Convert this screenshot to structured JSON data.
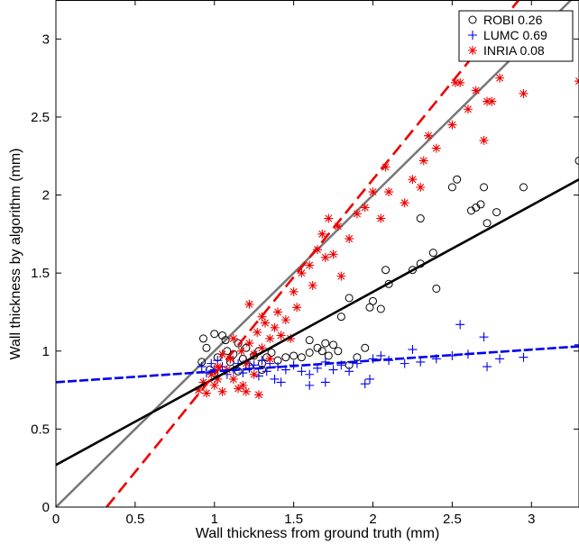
{
  "chart_data": {
    "type": "scatter",
    "title": "",
    "xlabel": "Wall thickness from ground truth (mm)",
    "ylabel": "Wall thickness by algorithm (mm)",
    "xlim": [
      0,
      3.3
    ],
    "ylim": [
      0,
      3.25
    ],
    "xticks": [
      0,
      0.5,
      1,
      1.5,
      2,
      2.5,
      3
    ],
    "yticks": [
      0,
      0.5,
      1,
      1.5,
      2,
      2.5,
      3
    ],
    "xtick_labels": [
      "0",
      "0.5",
      "1",
      "1.5",
      "2",
      "2.5",
      "3"
    ],
    "ytick_labels": [
      "0",
      "0.5",
      "1",
      "1.5",
      "2",
      "2.5",
      "3"
    ],
    "grid": false,
    "legend_position": "top-right",
    "legend": [
      {
        "label": "ROBI 0.26",
        "marker": "circle",
        "color": "#000000"
      },
      {
        "label": "LUMC 0.69",
        "marker": "plus",
        "color": "#0000ee"
      },
      {
        "label": "INRIA 0.08",
        "marker": "asterisk",
        "color": "#ee0000"
      }
    ],
    "reference_line": {
      "name": "identity",
      "color": "#777777",
      "x": [
        0,
        3.3
      ],
      "y": [
        0,
        3.3
      ]
    },
    "fit_lines": [
      {
        "series": "ROBI 0.26",
        "color": "#000000",
        "style": "solid",
        "x": [
          0,
          3.3
        ],
        "y": [
          0.27,
          2.1
        ]
      },
      {
        "series": "LUMC 0.69",
        "color": "#0000ee",
        "style": "dashed",
        "x": [
          0,
          3.3
        ],
        "y": [
          0.8,
          1.03
        ]
      },
      {
        "series": "INRIA 0.08",
        "color": "#ee0000",
        "style": "dashed",
        "x": [
          0.32,
          2.92
        ],
        "y": [
          0,
          3.25
        ]
      }
    ],
    "series": [
      {
        "name": "ROBI 0.26",
        "marker": "circle",
        "color": "#000000",
        "points": [
          [
            0.93,
            1.08
          ],
          [
            0.95,
            1.02
          ],
          [
            0.92,
            0.93
          ],
          [
            0.97,
            0.88
          ],
          [
            1.0,
            1.11
          ],
          [
            1.02,
            0.96
          ],
          [
            1.05,
            1.1
          ],
          [
            1.07,
            1.07
          ],
          [
            1.08,
            1.0
          ],
          [
            1.1,
            0.93
          ],
          [
            1.12,
            0.98
          ],
          [
            1.15,
            1.05
          ],
          [
            1.18,
            0.95
          ],
          [
            1.2,
            1.02
          ],
          [
            1.22,
            0.9
          ],
          [
            1.25,
            0.97
          ],
          [
            1.28,
            1.0
          ],
          [
            1.3,
            0.92
          ],
          [
            1.33,
            0.96
          ],
          [
            1.36,
            0.99
          ],
          [
            1.4,
            0.94
          ],
          [
            1.45,
            0.96
          ],
          [
            1.5,
            0.97
          ],
          [
            1.55,
            0.96
          ],
          [
            1.6,
            0.99
          ],
          [
            1.65,
            1.02
          ],
          [
            1.7,
            1.05
          ],
          [
            1.72,
            0.97
          ],
          [
            1.75,
            1.04
          ],
          [
            1.78,
            1.0
          ],
          [
            1.6,
            1.07
          ],
          [
            1.68,
            1.0
          ],
          [
            1.8,
            1.22
          ],
          [
            1.85,
            1.34
          ],
          [
            1.9,
            0.96
          ],
          [
            1.95,
            1.02
          ],
          [
            1.98,
            1.28
          ],
          [
            2.0,
            1.32
          ],
          [
            2.05,
            1.27
          ],
          [
            2.08,
            1.52
          ],
          [
            2.1,
            1.43
          ],
          [
            2.25,
            1.52
          ],
          [
            2.3,
            1.56
          ],
          [
            2.38,
            1.63
          ],
          [
            2.4,
            1.4
          ],
          [
            2.3,
            1.85
          ],
          [
            2.5,
            2.05
          ],
          [
            2.53,
            2.1
          ],
          [
            2.62,
            1.9
          ],
          [
            2.65,
            1.92
          ],
          [
            2.68,
            1.94
          ],
          [
            2.7,
            2.05
          ],
          [
            2.72,
            1.82
          ],
          [
            2.78,
            1.89
          ],
          [
            2.95,
            2.05
          ],
          [
            3.3,
            2.22
          ],
          [
            1.0,
            0.86
          ],
          [
            1.15,
            0.87
          ],
          [
            1.3,
            0.88
          ],
          [
            1.85,
            0.91
          ]
        ]
      },
      {
        "name": "LUMC 0.69",
        "marker": "plus",
        "color": "#0000ee",
        "points": [
          [
            0.92,
            0.9
          ],
          [
            0.95,
            0.86
          ],
          [
            0.98,
            0.92
          ],
          [
            1.0,
            0.88
          ],
          [
            1.02,
            0.94
          ],
          [
            1.05,
            0.9
          ],
          [
            1.08,
            0.85
          ],
          [
            1.1,
            0.95
          ],
          [
            1.12,
            0.88
          ],
          [
            1.15,
            0.92
          ],
          [
            1.18,
            0.86
          ],
          [
            1.2,
            0.93
          ],
          [
            1.22,
            0.89
          ],
          [
            1.25,
            0.91
          ],
          [
            1.28,
            0.84
          ],
          [
            1.3,
            0.94
          ],
          [
            1.33,
            0.87
          ],
          [
            1.35,
            0.92
          ],
          [
            1.38,
            0.82
          ],
          [
            1.4,
            0.9
          ],
          [
            1.45,
            0.88
          ],
          [
            1.5,
            0.91
          ],
          [
            1.55,
            0.87
          ],
          [
            1.6,
            0.85
          ],
          [
            1.65,
            0.89
          ],
          [
            1.7,
            0.93
          ],
          [
            1.75,
            0.88
          ],
          [
            1.8,
            0.91
          ],
          [
            1.85,
            0.87
          ],
          [
            1.9,
            0.92
          ],
          [
            1.95,
            0.79
          ],
          [
            1.98,
            0.82
          ],
          [
            2.0,
            0.95
          ],
          [
            2.05,
            0.97
          ],
          [
            2.1,
            0.94
          ],
          [
            2.2,
            0.92
          ],
          [
            2.25,
            1.01
          ],
          [
            2.3,
            0.93
          ],
          [
            2.4,
            0.95
          ],
          [
            2.5,
            0.97
          ],
          [
            2.55,
            1.17
          ],
          [
            2.6,
            0.98
          ],
          [
            2.7,
            1.09
          ],
          [
            2.72,
            0.9
          ],
          [
            2.8,
            0.95
          ],
          [
            2.95,
            0.96
          ],
          [
            3.3,
            1.04
          ],
          [
            1.42,
            0.8
          ],
          [
            1.6,
            0.78
          ],
          [
            1.7,
            0.8
          ]
        ]
      },
      {
        "name": "INRIA 0.08",
        "marker": "asterisk",
        "color": "#ee0000",
        "points": [
          [
            0.9,
            0.75
          ],
          [
            0.93,
            0.8
          ],
          [
            0.95,
            0.73
          ],
          [
            0.98,
            0.85
          ],
          [
            1.0,
            0.78
          ],
          [
            1.02,
            0.9
          ],
          [
            1.05,
            0.74
          ],
          [
            1.08,
            0.88
          ],
          [
            1.1,
            0.95
          ],
          [
            1.12,
            0.82
          ],
          [
            1.15,
            0.76
          ],
          [
            1.17,
            1.0
          ],
          [
            1.2,
            0.92
          ],
          [
            1.22,
            1.05
          ],
          [
            1.25,
            0.98
          ],
          [
            1.27,
            1.12
          ],
          [
            1.3,
            1.02
          ],
          [
            1.32,
            1.18
          ],
          [
            1.35,
            1.08
          ],
          [
            1.38,
            1.15
          ],
          [
            1.4,
            1.25
          ],
          [
            1.42,
            1.1
          ],
          [
            1.45,
            1.2
          ],
          [
            1.5,
            1.38
          ],
          [
            1.52,
            1.28
          ],
          [
            1.55,
            1.5
          ],
          [
            1.6,
            1.55
          ],
          [
            1.62,
            1.42
          ],
          [
            1.65,
            1.65
          ],
          [
            1.68,
            1.75
          ],
          [
            1.7,
            1.6
          ],
          [
            1.72,
            1.85
          ],
          [
            1.75,
            1.62
          ],
          [
            1.78,
            1.8
          ],
          [
            1.8,
            1.48
          ],
          [
            1.85,
            1.72
          ],
          [
            1.9,
            1.88
          ],
          [
            1.95,
            1.92
          ],
          [
            2.0,
            2.02
          ],
          [
            2.05,
            1.85
          ],
          [
            2.08,
            2.18
          ],
          [
            2.1,
            2.02
          ],
          [
            2.2,
            1.95
          ],
          [
            2.25,
            2.1
          ],
          [
            2.3,
            2.05
          ],
          [
            2.32,
            2.22
          ],
          [
            2.35,
            2.38
          ],
          [
            2.4,
            2.3
          ],
          [
            2.5,
            2.45
          ],
          [
            2.52,
            2.72
          ],
          [
            2.55,
            2.72
          ],
          [
            2.6,
            2.55
          ],
          [
            2.65,
            2.67
          ],
          [
            2.7,
            2.35
          ],
          [
            2.72,
            2.6
          ],
          [
            2.75,
            2.6
          ],
          [
            2.8,
            2.75
          ],
          [
            2.95,
            2.65
          ],
          [
            3.3,
            2.73
          ],
          [
            1.22,
            1.3
          ],
          [
            1.3,
            1.22
          ],
          [
            1.02,
            0.82
          ],
          [
            1.2,
            0.74
          ],
          [
            1.35,
            0.95
          ],
          [
            1.25,
            0.85
          ],
          [
            1.18,
            0.78
          ],
          [
            1.28,
            0.72
          ],
          [
            1.05,
            0.98
          ],
          [
            1.12,
            1.08
          ],
          [
            1.48,
            1.08
          ]
        ]
      }
    ]
  }
}
